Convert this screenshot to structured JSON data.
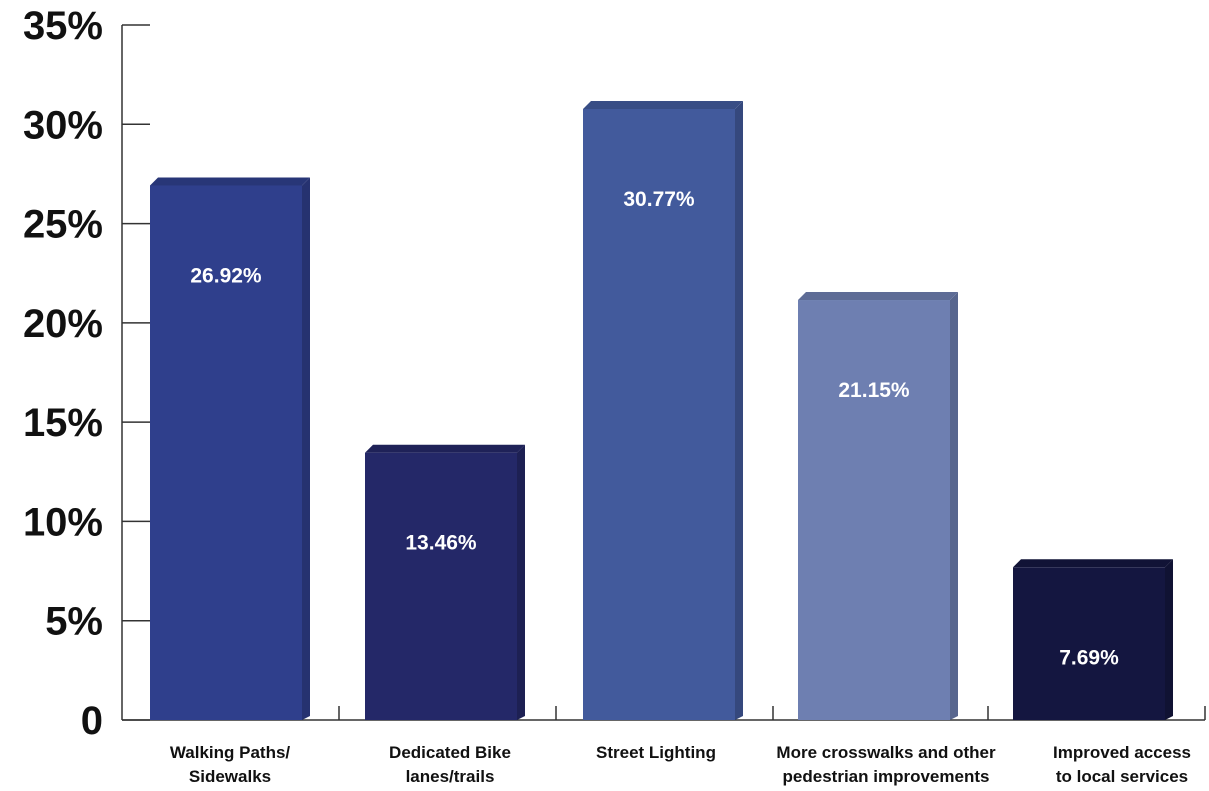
{
  "chart_data": {
    "type": "bar",
    "categories": [
      [
        "Walking Paths/",
        "Sidewalks"
      ],
      [
        "Dedicated Bike",
        "lanes/trails"
      ],
      [
        "Street Lighting"
      ],
      [
        "More crosswalks and other",
        "pedestrian improvements"
      ],
      [
        "Improved access",
        "to local services"
      ]
    ],
    "values": [
      26.92,
      13.46,
      30.77,
      21.15,
      7.69
    ],
    "value_labels": [
      "26.92%",
      "13.46%",
      "30.77%",
      "21.15%",
      "7.69%"
    ],
    "colors": [
      "#2f3f8c",
      "#242868",
      "#425a9c",
      "#6e7fb1",
      "#141640"
    ],
    "ylim": [
      0,
      35
    ],
    "yticks": [
      0,
      5,
      10,
      15,
      20,
      25,
      30,
      35
    ],
    "ytick_labels": [
      "0",
      "5%",
      "10%",
      "15%",
      "20%",
      "25%",
      "30%",
      "35%"
    ],
    "grid": false,
    "legend": "none"
  }
}
